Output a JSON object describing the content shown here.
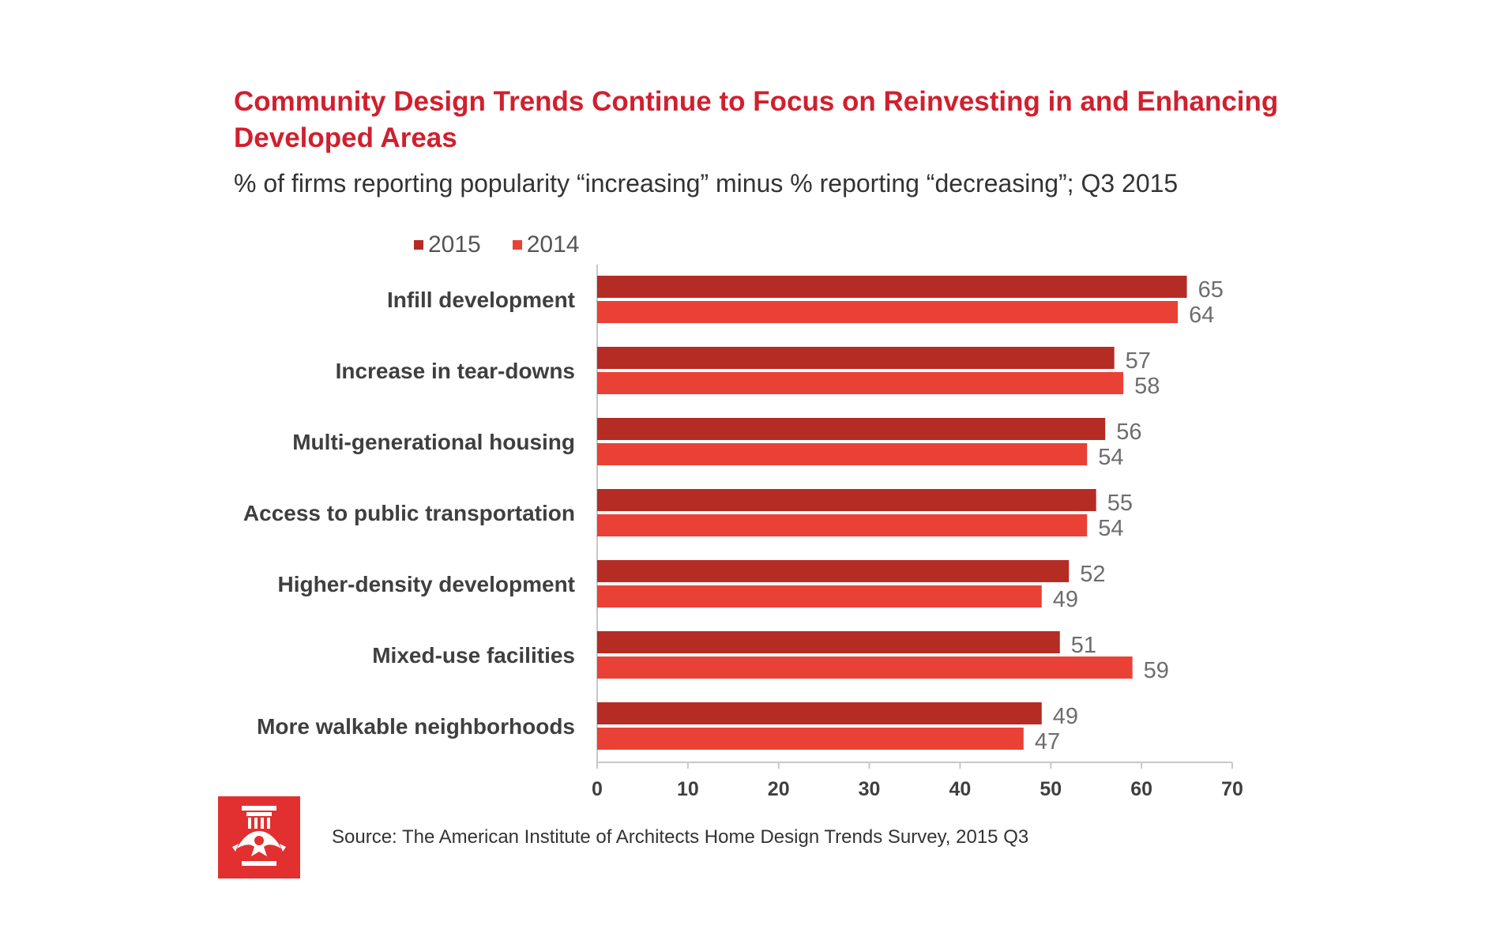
{
  "colors": {
    "series_2015": "#b52c25",
    "series_2014": "#ea4136",
    "title": "#d0202e",
    "logo": "#e23030"
  },
  "header": {
    "title": "Community Design Trends Continue to Focus on Reinvesting in and Enhancing Developed Areas",
    "subtitle": "% of firms reporting popularity “increasing” minus % reporting “decreasing”; Q3 2015"
  },
  "footer": {
    "source": "Source: The American Institute of Architects Home Design Trends Survey, 2015 Q3",
    "logo_icon": "aia-logo-icon"
  },
  "chart_data": {
    "type": "bar",
    "orientation": "horizontal",
    "title": "Community Design Trends Continue to Focus on Reinvesting in and Enhancing Developed Areas",
    "subtitle": "% of firms reporting popularity “increasing” minus % reporting “decreasing”; Q3 2015",
    "categories": [
      "Infill development",
      "Increase in tear-downs",
      "Multi-generational housing",
      "Access to public transportation",
      "Higher-density development",
      "Mixed-use facilities",
      "More walkable neighborhoods"
    ],
    "series": [
      {
        "name": "2015",
        "color": "#b52c25",
        "values": [
          65,
          57,
          56,
          55,
          52,
          51,
          49
        ]
      },
      {
        "name": "2014",
        "color": "#ea4136",
        "values": [
          64,
          58,
          54,
          54,
          49,
          59,
          47
        ]
      }
    ],
    "xlim": [
      0,
      70
    ],
    "xticks": [
      0,
      10,
      20,
      30,
      40,
      50,
      60,
      70
    ],
    "data_labels": true,
    "grid": false,
    "legend_position": "top-left"
  }
}
